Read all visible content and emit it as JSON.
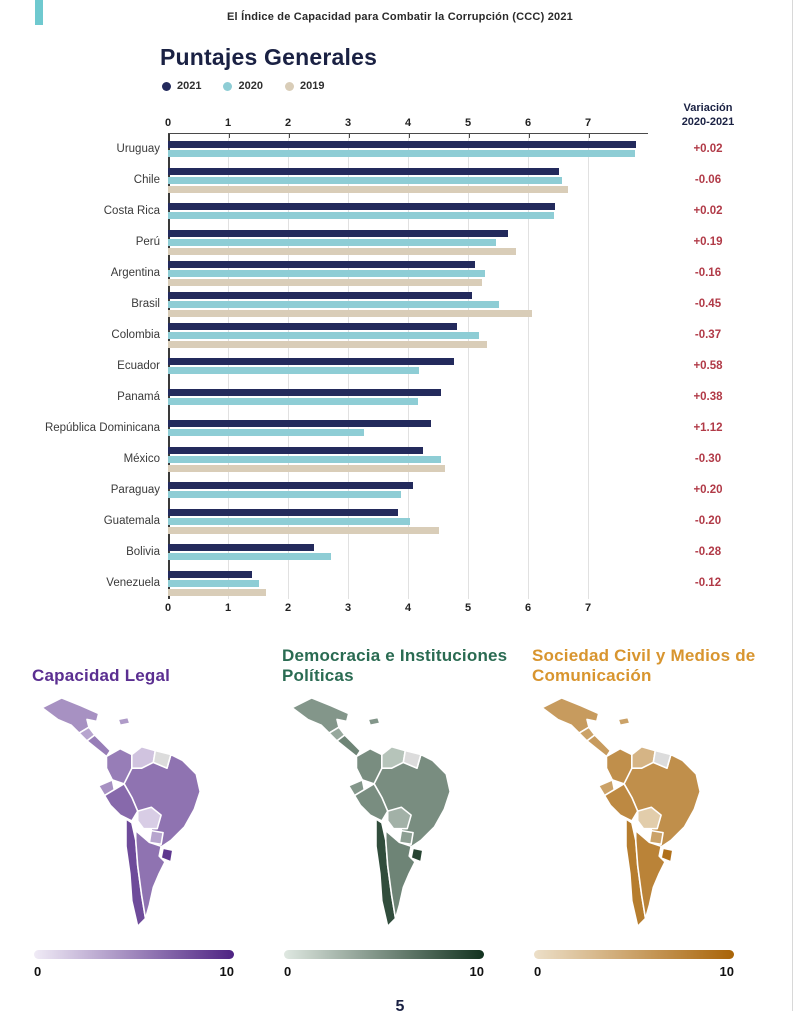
{
  "page": {
    "header_note": "El Índice de Capacidad para Combatir la Corrupción (CCC) 2021",
    "page_number": "5",
    "accent_teal": "#6fc9cf"
  },
  "chart_data": {
    "type": "bar",
    "orientation": "horizontal",
    "title": "Puntajes Generales",
    "xlim": [
      0,
      8
    ],
    "ticks": [
      0,
      1,
      2,
      3,
      4,
      5,
      6,
      7
    ],
    "variation_header_line1": "Variación",
    "variation_header_line2": "2020-2021",
    "legend": [
      {
        "label": "2021",
        "color": "#232a5c"
      },
      {
        "label": "2020",
        "color": "#8ecdd5"
      },
      {
        "label": "2019",
        "color": "#d9cdb8"
      }
    ],
    "colors": {
      "y2021": "#232a5c",
      "y2020": "#8ecdd5",
      "y2019": "#d9cdb8",
      "variation": "#b13a47",
      "title": "#1a2143"
    },
    "rows": [
      {
        "country": "Uruguay",
        "v2021": 7.8,
        "v2020": 7.78,
        "v2019": null,
        "variation": "+0.02"
      },
      {
        "country": "Chile",
        "v2021": 6.51,
        "v2020": 6.57,
        "v2019": 6.66,
        "variation": "-0.06"
      },
      {
        "country": "Costa Rica",
        "v2021": 6.45,
        "v2020": 6.43,
        "v2019": null,
        "variation": "+0.02"
      },
      {
        "country": "Perú",
        "v2021": 5.66,
        "v2020": 5.47,
        "v2019": 5.8,
        "variation": "+0.19"
      },
      {
        "country": "Argentina",
        "v2021": 5.12,
        "v2020": 5.28,
        "v2019": 5.24,
        "variation": "-0.16"
      },
      {
        "country": "Brasil",
        "v2021": 5.07,
        "v2020": 5.52,
        "v2019": 6.07,
        "variation": "-0.45"
      },
      {
        "country": "Colombia",
        "v2021": 4.81,
        "v2020": 5.18,
        "v2019": 5.32,
        "variation": "-0.37"
      },
      {
        "country": "Ecuador",
        "v2021": 4.77,
        "v2020": 4.19,
        "v2019": null,
        "variation": "+0.58"
      },
      {
        "country": "Panamá",
        "v2021": 4.55,
        "v2020": 4.17,
        "v2019": null,
        "variation": "+0.38"
      },
      {
        "country": "República Dominicana",
        "v2021": 4.38,
        "v2020": 3.26,
        "v2019": null,
        "variation": "+1.12"
      },
      {
        "country": "México",
        "v2021": 4.25,
        "v2020": 4.55,
        "v2019": 4.62,
        "variation": "-0.30"
      },
      {
        "country": "Paraguay",
        "v2021": 4.08,
        "v2020": 3.88,
        "v2019": null,
        "variation": "+0.20"
      },
      {
        "country": "Guatemala",
        "v2021": 3.84,
        "v2020": 4.04,
        "v2019": 4.52,
        "variation": "-0.20"
      },
      {
        "country": "Bolivia",
        "v2021": 2.43,
        "v2020": 2.71,
        "v2019": null,
        "variation": "-0.28"
      },
      {
        "country": "Venezuela",
        "v2021": 1.4,
        "v2020": 1.52,
        "v2019": 1.63,
        "variation": "-0.12"
      }
    ]
  },
  "maps": [
    {
      "title": "Capacidad Legal",
      "title_color": "#5b2f91",
      "scale_light": "#f0ebf6",
      "scale_dark": "#4e2383",
      "legend_min": "0",
      "legend_max": "10",
      "scores": {
        "mexico": 4.5,
        "guatemala": 3.5,
        "central": 5.5,
        "dominican": 4.0,
        "colombia": 5.5,
        "venezuela": 2.0,
        "guianas": null,
        "ecuador": 4.5,
        "peru": 6.5,
        "brasil": 6.0,
        "bolivia": 1.5,
        "paraguay": 3.5,
        "chile": 8.0,
        "argentina": 6.0,
        "uruguay": 9.0
      }
    },
    {
      "title": "Democracia e Instituciones Políticas",
      "title_color": "#2a6b52",
      "scale_light": "#dfe8e1",
      "scale_dark": "#12321f",
      "legend_min": "0",
      "legend_max": "10",
      "scores": {
        "mexico": 4.5,
        "guatemala": 3.5,
        "central": 5.5,
        "dominican": 4.5,
        "colombia": 5.0,
        "venezuela": 2.0,
        "guianas": null,
        "ecuador": 4.5,
        "peru": 5.0,
        "brasil": 5.0,
        "bolivia": 3.0,
        "paraguay": 4.0,
        "chile": 8.5,
        "argentina": 5.5,
        "uruguay": 9.0
      }
    },
    {
      "title": "Sociedad Civil y Medios de Comunicación",
      "title_color": "#d8952f",
      "scale_light": "#ecdfc8",
      "scale_dark": "#a96408",
      "legend_min": "0",
      "legend_max": "10",
      "scores": {
        "mexico": 5.5,
        "guatemala": 5.0,
        "central": 5.5,
        "dominican": 5.0,
        "colombia": 6.5,
        "venezuela": 3.5,
        "guianas": null,
        "ecuador": 5.0,
        "peru": 7.0,
        "brasil": 6.5,
        "bolivia": 1.5,
        "paraguay": 5.0,
        "chile": 8.0,
        "argentina": 7.5,
        "uruguay": 9.0
      }
    }
  ]
}
